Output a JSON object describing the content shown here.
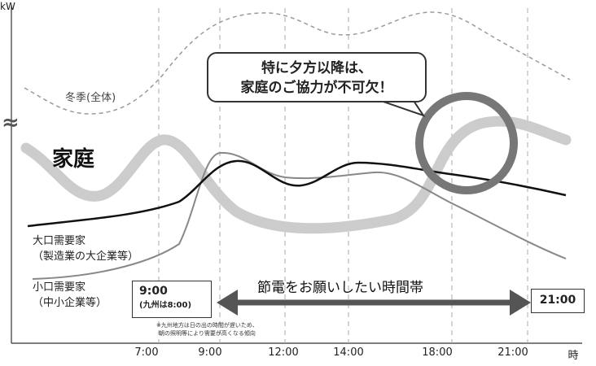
{
  "chart_data": {
    "type": "line",
    "unit_label": "kW",
    "x_axis_label": "時",
    "x_ticks": [
      "7:00",
      "9:00",
      "12:00",
      "14:00",
      "18:00",
      "21:00"
    ],
    "series": [
      {
        "name": "冬季(全体)",
        "style": "dashed",
        "color": "#9a9a9a"
      },
      {
        "name": "家庭",
        "style": "thick",
        "color": "#cccccc"
      },
      {
        "name": "大口需要家（製造業の大企業等）",
        "style": "solid",
        "color": "#111111"
      },
      {
        "name": "小口需要家（中小企業等）",
        "style": "solid",
        "color": "#888888"
      }
    ],
    "axis_break_symbol": "≈"
  },
  "labels": {
    "winter": "冬季(全体)",
    "house": "家庭",
    "large_line1": "大口需要家",
    "large_line2": "（製造業の大企業等）",
    "small_line1": "小口需要家",
    "small_line2": "（中小企業等）"
  },
  "callout": {
    "line1": "特に夕方以降は、",
    "line2": "家庭のご協力が不可欠！"
  },
  "band": {
    "label": "節電をお願いしたい時間帯",
    "start_time": "9:00",
    "start_note": "(九州は8:00)",
    "end_time": "21:00"
  },
  "footnote": {
    "line1": "※九州地方は日の出の時間が遅いため、",
    "line2": "朝の照明等により需要が高くなる傾向"
  },
  "colors": {
    "winter": "#9a9a9a",
    "house": "#cccccc",
    "large": "#111111",
    "small": "#888888",
    "arrow": "#555555",
    "circle": "#777777"
  }
}
